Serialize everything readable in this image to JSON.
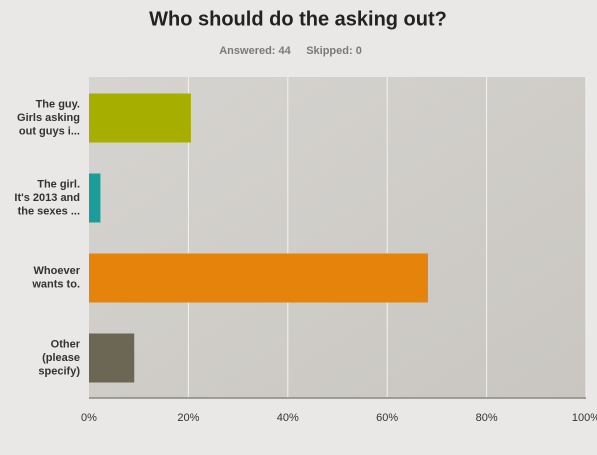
{
  "chart_data": {
    "type": "hbar",
    "title": "Who should do the asking out?",
    "annotations": [
      "Answered: 44",
      "Skipped: 0"
    ],
    "categories": [
      [
        "The guy.",
        "Girls asking",
        "out guys i..."
      ],
      [
        "The girl.",
        "It's 2013 and",
        "the sexes ..."
      ],
      [
        "Whoever",
        "wants to."
      ],
      [
        "Other",
        "(please",
        "specify)"
      ]
    ],
    "values": [
      20.5,
      2.3,
      68.2,
      9.1
    ],
    "colors": [
      "#a6ae00",
      "#1b9d9b",
      "#e5830b",
      "#6c6655"
    ],
    "xlim": [
      0,
      100
    ],
    "xticks": [
      {
        "value": 0,
        "label": "0%"
      },
      {
        "value": 20,
        "label": "20%"
      },
      {
        "value": 40,
        "label": "40%"
      },
      {
        "value": 60,
        "label": "60%"
      },
      {
        "value": 80,
        "label": "80%"
      },
      {
        "value": 100,
        "label": "100%"
      }
    ],
    "grid": true
  }
}
